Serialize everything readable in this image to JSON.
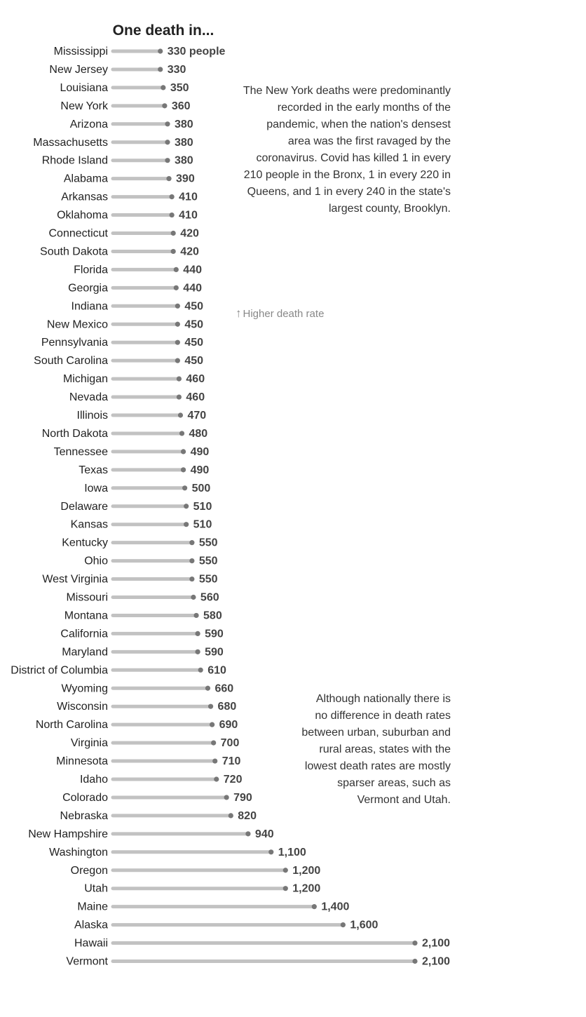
{
  "chart_data": {
    "type": "dot-bar",
    "title": "One death in...",
    "value_suffix_first": " people",
    "categories": [
      "Mississippi",
      "New Jersey",
      "Louisiana",
      "New York",
      "Arizona",
      "Massachusetts",
      "Rhode Island",
      "Alabama",
      "Arkansas",
      "Oklahoma",
      "Connecticut",
      "South Dakota",
      "Florida",
      "Georgia",
      "Indiana",
      "New Mexico",
      "Pennsylvania",
      "South Carolina",
      "Michigan",
      "Nevada",
      "Illinois",
      "North Dakota",
      "Tennessee",
      "Texas",
      "Iowa",
      "Delaware",
      "Kansas",
      "Kentucky",
      "Ohio",
      "West Virginia",
      "Missouri",
      "Montana",
      "California",
      "Maryland",
      "District of Columbia",
      "Wyoming",
      "Wisconsin",
      "North Carolina",
      "Virginia",
      "Minnesota",
      "Idaho",
      "Colorado",
      "Nebraska",
      "New Hampshire",
      "Washington",
      "Oregon",
      "Utah",
      "Maine",
      "Alaska",
      "Hawaii",
      "Vermont"
    ],
    "values": [
      330,
      330,
      350,
      360,
      380,
      380,
      380,
      390,
      410,
      410,
      420,
      420,
      440,
      440,
      450,
      450,
      450,
      450,
      460,
      460,
      470,
      480,
      490,
      490,
      500,
      510,
      510,
      550,
      550,
      550,
      560,
      580,
      590,
      590,
      610,
      660,
      680,
      690,
      700,
      710,
      720,
      790,
      820,
      940,
      1100,
      1200,
      1200,
      1400,
      1600,
      2100,
      2100
    ],
    "value_labels": [
      "330",
      "330",
      "350",
      "360",
      "380",
      "380",
      "380",
      "390",
      "410",
      "410",
      "420",
      "420",
      "440",
      "440",
      "450",
      "450",
      "450",
      "450",
      "460",
      "460",
      "470",
      "480",
      "490",
      "490",
      "500",
      "510",
      "510",
      "550",
      "550",
      "550",
      "560",
      "580",
      "590",
      "590",
      "610",
      "660",
      "680",
      "690",
      "700",
      "710",
      "720",
      "790",
      "820",
      "940",
      "1,100",
      "1,200",
      "1,200",
      "1,400",
      "1,600",
      "2,100",
      "2,100"
    ],
    "xlim": [
      0,
      2100
    ],
    "grid": false,
    "legend": "none"
  },
  "annotations": {
    "ny_note": "The New York deaths were predominantly recorded in the early months of the pandemic, when the nation's densest area was the first ravaged by the coronavirus. Covid has killed 1 in every 210 people in the Bronx, 1 in every 220 in Queens, and 1 in every 240 in the state's largest county, Brooklyn.",
    "rural_note": "Although nationally there is no difference in death rates between urban, suburban and rural areas, states with the lowest death rates are mostly sparser areas, such as Vermont and Utah.",
    "direction_hint": "Higher death rate",
    "direction_arrow": "↑"
  },
  "colors": {
    "bar": "#c2c2c2",
    "dot": "#777777",
    "text": "#222222",
    "value": "#444444"
  }
}
